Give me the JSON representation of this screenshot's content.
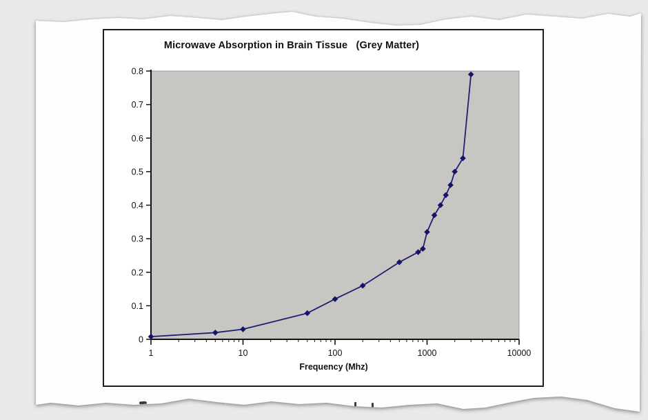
{
  "page": {
    "background_color": "#e8e9e9",
    "paper_color": "#fdfdfe",
    "description_of_fragments": "tops of a torn-off line of text at the bottom tear"
  },
  "chart_data": {
    "type": "line",
    "title": "Microwave Absorption in Brain Tissue   (Grey Matter)",
    "xlabel": "Frequency (Mhz)",
    "ylabel": "",
    "x_scale": "log",
    "xlim": [
      1,
      10000
    ],
    "ylim": [
      0,
      0.8
    ],
    "x_ticks": [
      1,
      10,
      100,
      1000,
      10000
    ],
    "x_tick_labels": [
      "1",
      "10",
      "100",
      "1000",
      "10000"
    ],
    "x_minor_ticks": true,
    "y_ticks": [
      0,
      0.1,
      0.2,
      0.3,
      0.4,
      0.5,
      0.6,
      0.7,
      0.8
    ],
    "y_tick_labels": [
      "0",
      "0.1",
      "0.2",
      "0.3",
      "0.4",
      "0.5",
      "0.6",
      "0.7",
      "0.8"
    ],
    "grid": false,
    "legend": false,
    "plot_bg": "#c7c6c3",
    "plot_border_color": "#979690",
    "axis_color": "#111111",
    "line_color": "#1e1e73",
    "marker": "diamond",
    "marker_color": "#14146a",
    "series": [
      {
        "name": "grey-matter-absorption",
        "x": [
          1,
          5,
          10,
          50,
          100,
          200,
          500,
          800,
          900,
          1000,
          1200,
          1400,
          1600,
          1800,
          2000,
          2450,
          3000
        ],
        "y": [
          0.008,
          0.02,
          0.03,
          0.078,
          0.12,
          0.16,
          0.23,
          0.26,
          0.27,
          0.32,
          0.37,
          0.4,
          0.43,
          0.46,
          0.5,
          0.54,
          0.79
        ]
      }
    ]
  }
}
